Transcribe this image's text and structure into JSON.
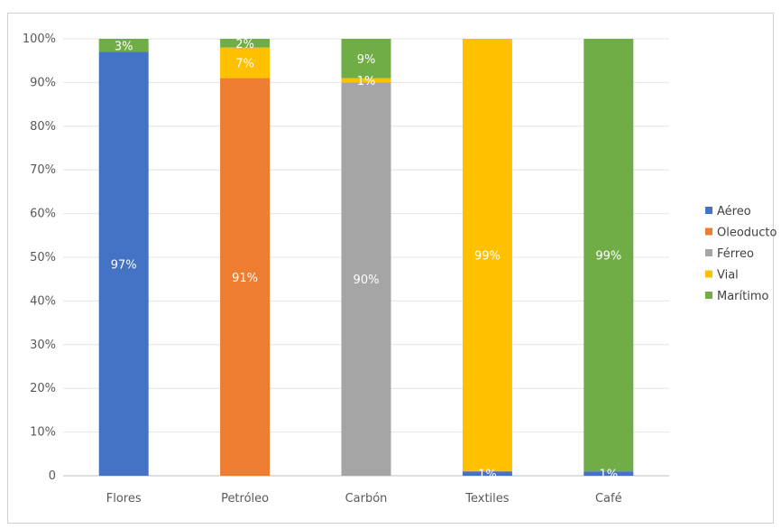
{
  "chart_data": {
    "type": "bar",
    "stacked": true,
    "categories": [
      "Flores",
      "Petróleo",
      "Carbón",
      "Textiles",
      "Café"
    ],
    "series": [
      {
        "name": "Aéreo",
        "color": "#4472C4",
        "values": [
          97,
          0,
          0,
          1,
          1
        ],
        "labels": [
          "97%",
          "",
          "",
          "1%",
          "1%"
        ]
      },
      {
        "name": "Oleoducto",
        "color": "#ED7D31",
        "values": [
          0,
          91,
          0,
          0,
          0
        ],
        "labels": [
          "",
          "91%",
          "",
          "",
          ""
        ]
      },
      {
        "name": "Férreo",
        "color": "#A5A5A5",
        "values": [
          0,
          0,
          90,
          0,
          0
        ],
        "labels": [
          "",
          "",
          "90%",
          "",
          ""
        ]
      },
      {
        "name": "Vial",
        "color": "#FFC000",
        "values": [
          0,
          7,
          1,
          99,
          0
        ],
        "labels": [
          "",
          "7%",
          "1%",
          "99%",
          ""
        ]
      },
      {
        "name": "Marítimo",
        "color": "#70AD47",
        "values": [
          3,
          2,
          9,
          0,
          99
        ],
        "labels": [
          "3%",
          "2%",
          "9%",
          "",
          "99%"
        ]
      }
    ],
    "yticks": [
      "0",
      "10%",
      "20%",
      "30%",
      "40%",
      "50%",
      "60%",
      "70%",
      "80%",
      "90%",
      "100%"
    ],
    "ylim": [
      0,
      100
    ],
    "grid": true,
    "legend": "right"
  }
}
